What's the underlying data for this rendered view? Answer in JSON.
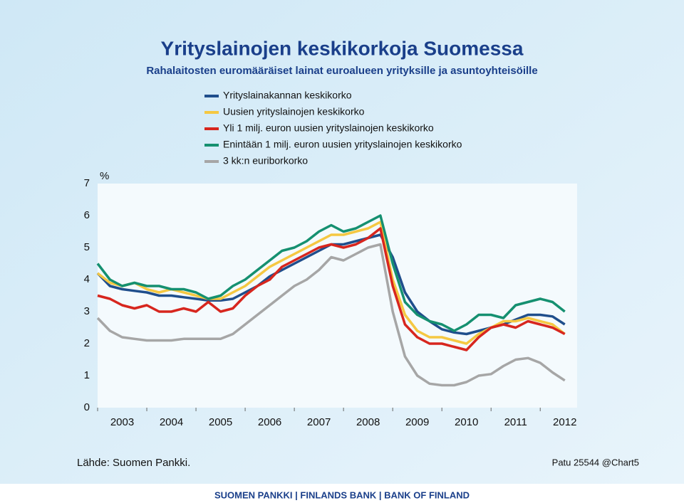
{
  "chart_data": {
    "type": "line",
    "title": "Yrityslainojen keskikorkoja Suomessa",
    "subtitle": "Rahalaitosten euromääräiset lainat euroalueen yrityksille ja asuntoyhteisöille",
    "y_unit": "%",
    "x": [
      2003,
      2003.25,
      2003.5,
      2003.75,
      2004,
      2004.25,
      2004.5,
      2004.75,
      2005,
      2005.25,
      2005.5,
      2005.75,
      2006,
      2006.25,
      2006.5,
      2006.75,
      2007,
      2007.25,
      2007.5,
      2007.75,
      2008,
      2008.25,
      2008.5,
      2008.75,
      2009,
      2009.25,
      2009.5,
      2009.75,
      2010,
      2010.25,
      2010.5,
      2010.75,
      2011,
      2011.25,
      2011.5,
      2011.75,
      2012,
      2012.25,
      2012.5
    ],
    "xlim": [
      2003,
      2012.75
    ],
    "xticks": [
      2003,
      2004,
      2005,
      2006,
      2007,
      2008,
      2009,
      2010,
      2011,
      2012
    ],
    "ylim": [
      0,
      7
    ],
    "yticks": [
      0,
      1,
      2,
      3,
      4,
      5,
      6,
      7
    ],
    "grid": false,
    "legend": "top",
    "series": [
      {
        "name": "Yrityslainakannan keskikorko",
        "color": "#1f4e8c",
        "values": [
          4.2,
          3.8,
          3.7,
          3.65,
          3.6,
          3.5,
          3.5,
          3.45,
          3.4,
          3.35,
          3.35,
          3.4,
          3.6,
          3.8,
          4.1,
          4.3,
          4.5,
          4.7,
          4.9,
          5.1,
          5.1,
          5.2,
          5.3,
          5.4,
          4.7,
          3.6,
          3.0,
          2.7,
          2.45,
          2.35,
          2.3,
          2.4,
          2.5,
          2.6,
          2.75,
          2.9,
          2.9,
          2.85,
          2.6
        ]
      },
      {
        "name": "Uusien yrityslainojen keskikorko",
        "color": "#f5c842",
        "values": [
          4.2,
          3.9,
          3.8,
          3.9,
          3.7,
          3.6,
          3.7,
          3.6,
          3.5,
          3.4,
          3.4,
          3.6,
          3.8,
          4.1,
          4.4,
          4.6,
          4.8,
          5.0,
          5.2,
          5.4,
          5.4,
          5.5,
          5.6,
          5.8,
          4.0,
          2.9,
          2.4,
          2.2,
          2.2,
          2.1,
          2.0,
          2.3,
          2.5,
          2.7,
          2.7,
          2.8,
          2.7,
          2.6,
          2.3
        ]
      },
      {
        "name": "Yli 1 milj. euron uusien yrityslainojen keskikorko",
        "color": "#d7261e",
        "values": [
          3.5,
          3.4,
          3.2,
          3.1,
          3.2,
          3.0,
          3.0,
          3.1,
          3.0,
          3.3,
          3.0,
          3.1,
          3.5,
          3.8,
          4.0,
          4.4,
          4.6,
          4.8,
          5.0,
          5.1,
          5.0,
          5.1,
          5.3,
          5.6,
          3.8,
          2.6,
          2.2,
          2.0,
          2.0,
          1.9,
          1.8,
          2.2,
          2.5,
          2.6,
          2.5,
          2.7,
          2.6,
          2.5,
          2.3
        ]
      },
      {
        "name": "Enintään 1 milj. euron uusien yrityslainojen keskikorko",
        "color": "#159070",
        "values": [
          4.5,
          4.0,
          3.8,
          3.9,
          3.8,
          3.8,
          3.7,
          3.7,
          3.6,
          3.4,
          3.5,
          3.8,
          4.0,
          4.3,
          4.6,
          4.9,
          5.0,
          5.2,
          5.5,
          5.7,
          5.5,
          5.6,
          5.8,
          6.0,
          4.5,
          3.3,
          2.9,
          2.7,
          2.6,
          2.4,
          2.6,
          2.9,
          2.9,
          2.8,
          3.2,
          3.3,
          3.4,
          3.3,
          3.0
        ]
      },
      {
        "name": "3 kk:n euriborkorko",
        "color": "#a6a6a6",
        "values": [
          2.8,
          2.4,
          2.2,
          2.15,
          2.1,
          2.1,
          2.1,
          2.15,
          2.15,
          2.15,
          2.15,
          2.3,
          2.6,
          2.9,
          3.2,
          3.5,
          3.8,
          4.0,
          4.3,
          4.7,
          4.6,
          4.8,
          5.0,
          5.1,
          3.0,
          1.6,
          1.0,
          0.75,
          0.7,
          0.7,
          0.8,
          1.0,
          1.05,
          1.3,
          1.5,
          1.55,
          1.4,
          1.1,
          0.85
        ]
      }
    ]
  },
  "source": "Lähde: Suomen Pankki.",
  "chart_id": "Patu 25544 @Chart5",
  "footer": "SUOMEN PANKKI | FINLANDS BANK | BANK OF FINLAND"
}
